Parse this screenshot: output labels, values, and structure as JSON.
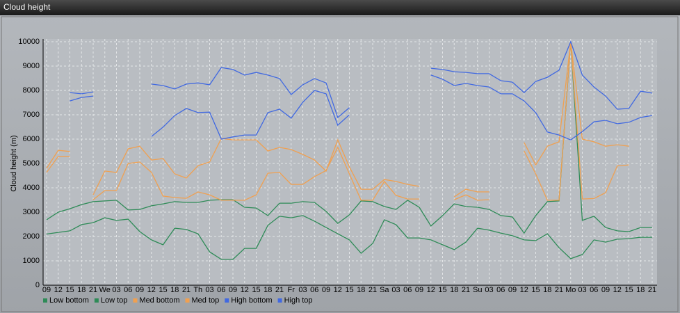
{
  "window_title": "Cloud height",
  "chart_data": {
    "type": "line",
    "y_label": "Cloud height (m)",
    "categories": [
      "09",
      "12",
      "15",
      "18",
      "21",
      "We",
      "03",
      "06",
      "09",
      "12",
      "15",
      "18",
      "21",
      "Th",
      "03",
      "06",
      "09",
      "12",
      "15",
      "18",
      "21",
      "Fr",
      "03",
      "06",
      "09",
      "12",
      "15",
      "18",
      "21",
      "Sa",
      "03",
      "06",
      "09",
      "12",
      "15",
      "18",
      "21",
      "Su",
      "03",
      "06",
      "09",
      "12",
      "15",
      "18",
      "21",
      "Mo",
      "03",
      "06",
      "09",
      "12",
      "15",
      "18",
      "21"
    ],
    "ylim": [
      0,
      10000
    ],
    "yticks": [
      0,
      1000,
      2000,
      3000,
      4000,
      5000,
      6000,
      7000,
      8000,
      9000,
      10000
    ],
    "grid": true,
    "series": [
      {
        "name": "Low bottom",
        "color": "#2e8b57",
        "values": [
          2100,
          2170,
          2230,
          2490,
          2570,
          2770,
          2660,
          2710,
          2200,
          1860,
          1660,
          2340,
          2290,
          2110,
          1370,
          1060,
          1060,
          1510,
          1510,
          2460,
          2830,
          2770,
          2860,
          2630,
          2370,
          2110,
          1860,
          1310,
          1710,
          2690,
          2490,
          1940,
          1940,
          1860,
          1660,
          1460,
          1770,
          2340,
          2260,
          2140,
          2030,
          1860,
          1830,
          2110,
          1540,
          1090,
          1260,
          1860,
          1770,
          1890,
          1910,
          1970,
          1970
        ]
      },
      {
        "name": "Low top",
        "color": "#2e8b57",
        "values": [
          2690,
          3000,
          3140,
          3310,
          3430,
          3460,
          3490,
          3090,
          3110,
          3260,
          3340,
          3430,
          3400,
          3400,
          3490,
          3510,
          3510,
          3200,
          3170,
          2860,
          3370,
          3370,
          3430,
          3400,
          3030,
          2540,
          2890,
          3460,
          3430,
          3230,
          3110,
          3490,
          3200,
          2430,
          2860,
          3340,
          3230,
          3200,
          3110,
          2860,
          2800,
          2140,
          2860,
          3430,
          3460,
          10000,
          2660,
          2830,
          2370,
          2230,
          2200,
          2370,
          2370
        ]
      },
      {
        "name": "Med bottom",
        "color": "#f0a050",
        "values": [
          4630,
          5290,
          5290,
          null,
          3510,
          3890,
          3890,
          5000,
          5060,
          4630,
          3660,
          3600,
          3570,
          3830,
          3710,
          3490,
          3490,
          3490,
          3710,
          4600,
          4630,
          4140,
          4140,
          4460,
          4710,
          5660,
          4570,
          3490,
          3490,
          4260,
          3690,
          3540,
          3540,
          null,
          null,
          3510,
          3710,
          3490,
          3510,
          null,
          null,
          5510,
          4570,
          3490,
          3490,
          10000,
          3540,
          3560,
          3800,
          4900,
          4940,
          null,
          null
        ]
      },
      {
        "name": "Med top",
        "color": "#f0a050",
        "values": [
          4800,
          5540,
          5490,
          null,
          3710,
          4690,
          4630,
          5600,
          5710,
          5140,
          5200,
          4570,
          4400,
          4910,
          5060,
          6030,
          5970,
          5970,
          5970,
          5510,
          5660,
          5570,
          5370,
          5140,
          4690,
          5970,
          4860,
          3940,
          3940,
          4340,
          4260,
          4140,
          4060,
          null,
          null,
          3630,
          3940,
          3830,
          3830,
          null,
          null,
          5860,
          4940,
          5710,
          5890,
          10000,
          6000,
          5890,
          5710,
          5770,
          5710,
          null,
          null
        ]
      },
      {
        "name": "High bottom",
        "color": "#4169e1",
        "values": [
          null,
          null,
          7570,
          7710,
          7770,
          null,
          null,
          null,
          null,
          6110,
          6490,
          6970,
          7260,
          7090,
          7110,
          6000,
          6090,
          6170,
          6170,
          7090,
          7230,
          6860,
          7510,
          8000,
          7860,
          6570,
          7000,
          null,
          null,
          null,
          null,
          null,
          null,
          8630,
          8460,
          8200,
          8290,
          8200,
          8140,
          7860,
          7860,
          7570,
          7090,
          6290,
          6170,
          5970,
          6310,
          6710,
          6770,
          6630,
          6690,
          6890,
          6970
        ]
      },
      {
        "name": "High top",
        "color": "#4169e1",
        "values": [
          null,
          null,
          7910,
          7860,
          7940,
          null,
          null,
          null,
          null,
          8260,
          8200,
          8060,
          8260,
          8310,
          8230,
          8940,
          8860,
          8630,
          8740,
          8630,
          8490,
          7830,
          8230,
          8490,
          8310,
          6890,
          7290,
          null,
          null,
          null,
          null,
          null,
          null,
          8910,
          8860,
          8770,
          8740,
          8690,
          8690,
          8400,
          8340,
          7910,
          8370,
          8540,
          8830,
          10000,
          8630,
          8140,
          7770,
          7230,
          7260,
          7970,
          7890
        ]
      }
    ]
  }
}
